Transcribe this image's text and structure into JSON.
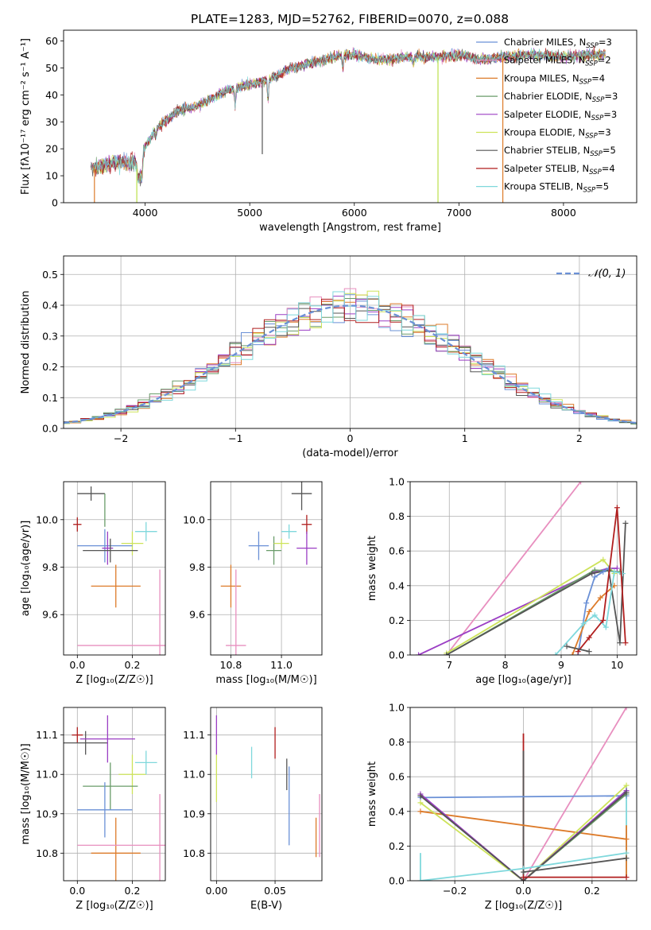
{
  "figure": {
    "title": "PLATE=1283, MJD=52762, FIBERID=0070, z=0.088"
  },
  "chart_data": [
    {
      "id": "spectrum",
      "type": "line",
      "xlabel": "wavelength [Angstrom, rest frame]",
      "ylabel": "Flux [fλ10⁻¹⁷ erg cm⁻² s⁻¹ A⁻¹]",
      "xlim": [
        3220,
        8700
      ],
      "ylim": [
        0,
        64
      ],
      "xticks": [
        4000,
        5000,
        6000,
        7000,
        8000
      ],
      "yticks": [
        0,
        10,
        20,
        30,
        40,
        50,
        60
      ],
      "grid": false,
      "legend_position": "top-right",
      "continuum": [
        [
          3500,
          13
        ],
        [
          3700,
          15
        ],
        [
          3900,
          15
        ],
        [
          3950,
          9
        ],
        [
          4000,
          21
        ],
        [
          4100,
          27
        ],
        [
          4300,
          34
        ],
        [
          4500,
          36
        ],
        [
          4800,
          42
        ],
        [
          5000,
          44
        ],
        [
          5200,
          46
        ],
        [
          5400,
          50
        ],
        [
          5600,
          52
        ],
        [
          5800,
          54
        ],
        [
          6000,
          55
        ],
        [
          6200,
          53
        ],
        [
          6500,
          54
        ],
        [
          6800,
          54
        ],
        [
          7000,
          55
        ],
        [
          7200,
          53
        ],
        [
          7400,
          54
        ],
        [
          7700,
          55
        ],
        [
          8000,
          54
        ],
        [
          8300,
          55
        ]
      ],
      "dips": [
        [
          3934,
          9
        ],
        [
          3969,
          10
        ],
        [
          4102,
          24
        ],
        [
          4861,
          36
        ],
        [
          5175,
          38
        ],
        [
          5890,
          50
        ],
        [
          6563,
          51
        ],
        [
          8498,
          52
        ],
        [
          8542,
          51
        ],
        [
          8662,
          52
        ]
      ],
      "spikes": [
        [
          3515,
          0,
          "#dd7b2a"
        ],
        [
          3920,
          0,
          "#bbe04a"
        ],
        [
          5120,
          18,
          "#555555"
        ],
        [
          6800,
          0,
          "#bbe04a"
        ],
        [
          7420,
          0,
          "#dd7b2a"
        ]
      ],
      "series": [
        {
          "name": "Chabrier MILES, N",
          "sub": "SSP",
          "tail": "=3",
          "color": "#6a90d6"
        },
        {
          "name": "Salpeter MILES, N",
          "sub": "SSP",
          "tail": "=2",
          "color": "#e88fbf"
        },
        {
          "name": "Kroupa MILES, N",
          "sub": "SSP",
          "tail": "=4",
          "color": "#dd7b2a"
        },
        {
          "name": "Chabrier ELODIE, N",
          "sub": "SSP",
          "tail": "=3",
          "color": "#6a9c6a"
        },
        {
          "name": "Salpeter ELODIE, N",
          "sub": "SSP",
          "tail": "=3",
          "color": "#9b3ec4"
        },
        {
          "name": "Kroupa ELODIE, N",
          "sub": "SSP",
          "tail": "=3",
          "color": "#cde35a"
        },
        {
          "name": "Chabrier STELIB, N",
          "sub": "SSP",
          "tail": "=5",
          "color": "#555555"
        },
        {
          "name": "Salpeter STELIB, N",
          "sub": "SSP",
          "tail": "=4",
          "color": "#b01e1e"
        },
        {
          "name": "Kroupa STELIB, N",
          "sub": "SSP",
          "tail": "=5",
          "color": "#7fd8dc"
        }
      ]
    },
    {
      "id": "residuals",
      "type": "histogram",
      "xlabel": "(data-model)/error",
      "ylabel": "Normed distribution",
      "xlim": [
        -2.5,
        2.5
      ],
      "ylim": [
        0,
        0.56
      ],
      "xticks": [
        -2,
        -1,
        0,
        1,
        2
      ],
      "yticks": [
        0.0,
        0.1,
        0.2,
        0.3,
        0.4,
        0.5
      ],
      "grid": true,
      "legend_position": "top-right",
      "legend_label": "𝒩(0, 1)",
      "reference_curve": {
        "mean": 0,
        "sigma": 1,
        "color": "#6a90d6"
      },
      "bin_width": 0.1
    },
    {
      "id": "age-vs-Z",
      "type": "errorbar",
      "xlabel": "Z [log₁₀(Z/Z☉)]",
      "ylabel": "age  [log₁₀(age/yr)]",
      "xlim": [
        -0.05,
        0.32
      ],
      "ylim": [
        9.43,
        10.16
      ],
      "xticks": [
        0.0,
        0.2
      ],
      "yticks": [
        9.6,
        9.8,
        10.0
      ],
      "points": [
        {
          "x": 0.0,
          "y": 9.98,
          "xe": 0.015,
          "ye": 0.03,
          "color": "#b01e1e"
        },
        {
          "x": 0.05,
          "y": 10.11,
          "xe": 0.05,
          "ye": 0.03,
          "color": "#555555"
        },
        {
          "x": 0.1,
          "y": 10.04,
          "xe": 0.0,
          "ye": 0.07,
          "color": "#6a9c6a"
        },
        {
          "x": 0.2,
          "y": 9.9,
          "xe": 0.04,
          "ye": 0.05,
          "color": "#cde35a"
        },
        {
          "x": 0.25,
          "y": 9.95,
          "xe": 0.04,
          "ye": 0.04,
          "color": "#7fd8dc"
        },
        {
          "x": 0.1,
          "y": 9.89,
          "xe": 0.1,
          "ye": 0.07,
          "color": "#6a90d6"
        },
        {
          "x": 0.11,
          "y": 9.88,
          "xe": 0.02,
          "ye": 0.07,
          "color": "#9b3ec4"
        },
        {
          "x": 0.12,
          "y": 9.87,
          "xe": 0.1,
          "ye": 0.05,
          "color": "#555555"
        },
        {
          "x": 0.14,
          "y": 9.72,
          "xe": 0.09,
          "ye": 0.09,
          "color": "#dd7b2a"
        },
        {
          "x": 0.3,
          "y": 9.47,
          "xe": 0.3,
          "ye": 0.32,
          "color": "#e88fbf"
        }
      ]
    },
    {
      "id": "age-vs-mass",
      "type": "errorbar",
      "xlabel": "mass [log₁₀(M/M☉)]",
      "ylabel": "",
      "xlim": [
        10.72,
        11.16
      ],
      "ylim": [
        9.43,
        10.16
      ],
      "xticks": [
        10.8,
        11.0
      ],
      "yticks": [
        9.6,
        9.8,
        10.0
      ],
      "points": [
        {
          "x": 10.8,
          "y": 9.72,
          "xe": 0.04,
          "ye": 0.09,
          "color": "#dd7b2a"
        },
        {
          "x": 10.82,
          "y": 9.47,
          "xe": 0.04,
          "ye": 0.32,
          "color": "#e88fbf"
        },
        {
          "x": 10.91,
          "y": 9.89,
          "xe": 0.04,
          "ye": 0.06,
          "color": "#6a90d6"
        },
        {
          "x": 10.97,
          "y": 9.87,
          "xe": 0.03,
          "ye": 0.06,
          "color": "#6a9c6a"
        },
        {
          "x": 11.0,
          "y": 9.9,
          "xe": 0.03,
          "ye": 0.02,
          "color": "#cde35a"
        },
        {
          "x": 11.03,
          "y": 9.95,
          "xe": 0.03,
          "ye": 0.03,
          "color": "#7fd8dc"
        },
        {
          "x": 11.08,
          "y": 10.11,
          "xe": 0.04,
          "ye": 0.07,
          "color": "#555555"
        },
        {
          "x": 11.1,
          "y": 9.98,
          "xe": 0.02,
          "ye": 0.04,
          "color": "#b01e1e"
        },
        {
          "x": 11.1,
          "y": 9.88,
          "xe": 0.04,
          "ye": 0.07,
          "color": "#9b3ec4"
        }
      ]
    },
    {
      "id": "weight-vs-age",
      "type": "line",
      "xlabel": "age  [log₁₀(age/yr)]",
      "ylabel": "mass weight",
      "xlim": [
        6.3,
        10.35
      ],
      "ylim": [
        0,
        1
      ],
      "xticks": [
        7,
        8,
        9,
        10
      ],
      "yticks": [
        0.0,
        0.2,
        0.4,
        0.6,
        0.8,
        1.0
      ],
      "grid": true,
      "series": [
        {
          "color": "#e88fbf",
          "points": [
            [
              6.95,
              0.0
            ],
            [
              9.35,
              1.0
            ]
          ]
        },
        {
          "color": "#9b3ec4",
          "points": [
            [
              6.45,
              0.0
            ],
            [
              9.6,
              0.48
            ],
            [
              9.85,
              0.5
            ],
            [
              10.0,
              0.5
            ]
          ]
        },
        {
          "color": "#cde35a",
          "points": [
            [
              6.95,
              0.01
            ],
            [
              9.75,
              0.55
            ],
            [
              9.95,
              0.47
            ]
          ]
        },
        {
          "color": "#6a9c6a",
          "points": [
            [
              6.95,
              0.0
            ],
            [
              9.6,
              0.49
            ],
            [
              10.05,
              0.48
            ]
          ]
        },
        {
          "color": "#555555",
          "points": [
            [
              6.95,
              0.0
            ],
            [
              9.55,
              0.47
            ],
            [
              9.85,
              0.49
            ],
            [
              10.05,
              0.07
            ],
            [
              10.15,
              0.76
            ]
          ]
        },
        {
          "color": "#6a90d6",
          "points": [
            [
              9.3,
              0.0
            ],
            [
              9.45,
              0.3
            ],
            [
              9.6,
              0.45
            ],
            [
              9.75,
              0.48
            ],
            [
              9.85,
              0.5
            ]
          ]
        },
        {
          "color": "#dd7b2a",
          "points": [
            [
              9.2,
              0.0
            ],
            [
              9.5,
              0.25
            ],
            [
              9.7,
              0.33
            ],
            [
              9.95,
              0.4
            ]
          ]
        },
        {
          "color": "#7fd8dc",
          "points": [
            [
              8.9,
              0.0
            ],
            [
              9.4,
              0.18
            ],
            [
              9.6,
              0.23
            ],
            [
              9.8,
              0.16
            ],
            [
              9.95,
              0.48
            ],
            [
              10.1,
              0.47
            ]
          ]
        },
        {
          "color": "#b01e1e",
          "points": [
            [
              9.3,
              0.02
            ],
            [
              9.5,
              0.1
            ],
            [
              9.75,
              0.2
            ],
            [
              10.0,
              0.85
            ],
            [
              10.15,
              0.07
            ]
          ]
        },
        {
          "color": "#555555",
          "points": [
            [
              9.1,
              0.05
            ],
            [
              9.5,
              0.02
            ]
          ]
        }
      ]
    },
    {
      "id": "mass-vs-Z",
      "type": "errorbar",
      "xlabel": "Z [log₁₀(Z/Z☉)]",
      "ylabel": "mass [log₁₀(M/M☉)]",
      "xlim": [
        -0.05,
        0.32
      ],
      "ylim": [
        10.73,
        11.17
      ],
      "xticks": [
        0.0,
        0.2
      ],
      "yticks": [
        10.8,
        10.9,
        11.0,
        11.1
      ],
      "points": [
        {
          "x": 0.0,
          "y": 11.1,
          "xe": 0.02,
          "ye": 0.02,
          "color": "#b01e1e"
        },
        {
          "x": 0.03,
          "y": 11.08,
          "xe": 0.08,
          "ye": 0.03,
          "color": "#555555"
        },
        {
          "x": 0.11,
          "y": 11.09,
          "xe": 0.1,
          "ye": 0.06,
          "color": "#9b3ec4"
        },
        {
          "x": 0.2,
          "y": 11.0,
          "xe": 0.05,
          "ye": 0.05,
          "color": "#cde35a"
        },
        {
          "x": 0.25,
          "y": 11.03,
          "xe": 0.04,
          "ye": 0.03,
          "color": "#7fd8dc"
        },
        {
          "x": 0.12,
          "y": 10.97,
          "xe": 0.1,
          "ye": 0.06,
          "color": "#6a9c6a"
        },
        {
          "x": 0.1,
          "y": 10.91,
          "xe": 0.1,
          "ye": 0.07,
          "color": "#6a90d6"
        },
        {
          "x": 0.14,
          "y": 10.8,
          "xe": 0.09,
          "ye": 0.09,
          "color": "#dd7b2a"
        },
        {
          "x": 0.3,
          "y": 10.82,
          "xe": 0.3,
          "ye": 0.13,
          "color": "#e88fbf"
        }
      ]
    },
    {
      "id": "mass-vs-ebv",
      "type": "errorbar",
      "xlabel": "E(B-V)",
      "ylabel": "",
      "xlim": [
        -0.005,
        0.09
      ],
      "ylim": [
        10.73,
        11.17
      ],
      "xticks": [
        0.0,
        0.05
      ],
      "yticks": [
        10.8,
        10.9,
        11.0,
        11.1
      ],
      "points": [
        {
          "x": 0.0,
          "y": 11.1,
          "xe": 0.0,
          "ye": 0.05,
          "color": "#9b3ec4"
        },
        {
          "x": 0.0,
          "y": 10.99,
          "xe": 0.0,
          "ye": 0.06,
          "color": "#cde35a"
        },
        {
          "x": 0.03,
          "y": 11.03,
          "xe": 0.0,
          "ye": 0.04,
          "color": "#7fd8dc"
        },
        {
          "x": 0.05,
          "y": 11.08,
          "xe": 0.0,
          "ye": 0.04,
          "color": "#b01e1e"
        },
        {
          "x": 0.06,
          "y": 11.0,
          "xe": 0.0,
          "ye": 0.04,
          "color": "#555555"
        },
        {
          "x": 0.062,
          "y": 10.92,
          "xe": 0.0,
          "ye": 0.1,
          "color": "#6a90d6"
        },
        {
          "x": 0.085,
          "y": 10.84,
          "xe": 0.0,
          "ye": 0.05,
          "color": "#dd7b2a"
        },
        {
          "x": 0.088,
          "y": 10.87,
          "xe": 0.0,
          "ye": 0.08,
          "color": "#e88fbf"
        }
      ]
    },
    {
      "id": "weight-vs-Z",
      "type": "line",
      "xlabel": "Z [log₁₀(Z/Z☉)]",
      "ylabel": "mass weight",
      "xlim": [
        -0.33,
        0.33
      ],
      "ylim": [
        0,
        1
      ],
      "xticks": [
        -0.2,
        0.0,
        0.2
      ],
      "yticks": [
        0.0,
        0.2,
        0.4,
        0.6,
        0.8,
        1.0
      ],
      "grid": true,
      "series": [
        {
          "color": "#e88fbf",
          "points": [
            [
              0.0,
              0.0
            ],
            [
              0.3,
              1.0
            ]
          ]
        },
        {
          "color": "#6a90d6",
          "points": [
            [
              -0.3,
              0.48
            ],
            [
              0.3,
              0.49
            ]
          ]
        },
        {
          "color": "#dd7b2a",
          "points": [
            [
              -0.3,
              0.4
            ],
            [
              0.3,
              0.24
            ]
          ]
        },
        {
          "color": "#cde35a",
          "points": [
            [
              -0.3,
              0.45
            ],
            [
              0.0,
              0.0
            ],
            [
              0.3,
              0.55
            ]
          ]
        },
        {
          "color": "#6a9c6a",
          "points": [
            [
              -0.3,
              0.49
            ],
            [
              0.0,
              0.0
            ],
            [
              0.3,
              0.5
            ]
          ]
        },
        {
          "color": "#9b3ec4",
          "points": [
            [
              -0.3,
              0.5
            ],
            [
              0.0,
              0.0
            ],
            [
              0.3,
              0.52
            ]
          ]
        },
        {
          "color": "#555555",
          "points": [
            [
              -0.3,
              0.49
            ],
            [
              0.0,
              0.0
            ],
            [
              0.3,
              0.51
            ]
          ]
        },
        {
          "color": "#7fd8dc",
          "points": [
            [
              -0.3,
              0.0
            ],
            [
              0.0,
              0.07
            ],
            [
              0.3,
              0.16
            ]
          ]
        },
        {
          "color": "#555555",
          "points": [
            [
              0.0,
              0.05
            ],
            [
              0.3,
              0.13
            ]
          ]
        },
        {
          "color": "#b01e1e",
          "points": [
            [
              0.0,
              0.02
            ],
            [
              0.3,
              0.02
            ]
          ]
        }
      ],
      "verticals": [
        {
          "x": 0.0,
          "y0": 0.0,
          "y1": 0.85,
          "color": "#b01e1e"
        },
        {
          "x": 0.0,
          "y0": 0.0,
          "y1": 0.75,
          "color": "#555555"
        },
        {
          "x": 0.3,
          "y0": 0.02,
          "y1": 0.55,
          "color": "#7fd8dc"
        },
        {
          "x": -0.3,
          "y0": 0.0,
          "y1": 0.16,
          "color": "#7fd8dc"
        },
        {
          "x": 0.3,
          "y0": 0.02,
          "y1": 0.32,
          "color": "#dd7b2a"
        }
      ]
    }
  ]
}
